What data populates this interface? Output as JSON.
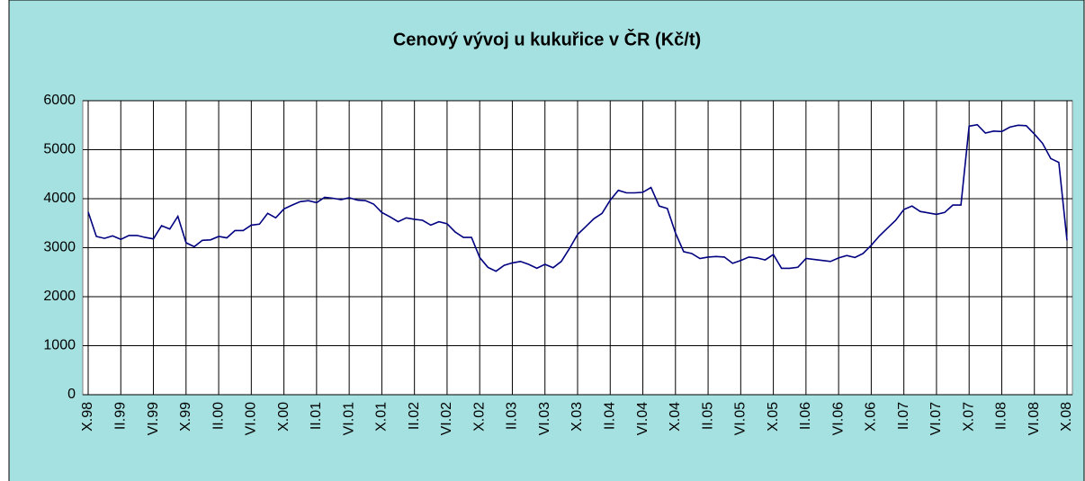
{
  "chart_data": {
    "type": "line",
    "title": "Cenový vývoj u kukuřice v ČR (Kč/t)",
    "categories": [
      "X.98",
      null,
      null,
      null,
      "II.99",
      null,
      null,
      null,
      "VI.99",
      null,
      null,
      null,
      "X.99",
      null,
      null,
      null,
      "II.00",
      null,
      null,
      null,
      "VI.00",
      null,
      null,
      null,
      "X.00",
      null,
      null,
      null,
      "II.01",
      null,
      null,
      null,
      "VI.01",
      null,
      null,
      null,
      "X.01",
      null,
      null,
      null,
      "II.02",
      null,
      null,
      null,
      "VI.02",
      null,
      null,
      null,
      "X.02",
      null,
      null,
      null,
      "II.03",
      null,
      null,
      null,
      "VI.03",
      null,
      null,
      null,
      "X.03",
      null,
      null,
      null,
      "II.04",
      null,
      null,
      null,
      "VI.04",
      null,
      null,
      null,
      "X.04",
      null,
      null,
      null,
      "II.05",
      null,
      null,
      null,
      "VI.05",
      null,
      null,
      null,
      "X.05",
      null,
      null,
      null,
      "II.06",
      null,
      null,
      null,
      "VI.06",
      null,
      null,
      null,
      "X.06",
      null,
      null,
      null,
      "II.07",
      null,
      null,
      null,
      "VI.07",
      null,
      null,
      null,
      "X.07",
      null,
      null,
      null,
      "II.08",
      null,
      null,
      null,
      "VI.08",
      null,
      null,
      null,
      "X.08"
    ],
    "values": [
      3730,
      3230,
      3190,
      3240,
      3170,
      3250,
      3250,
      3210,
      3180,
      3450,
      3380,
      3640,
      3100,
      3020,
      3150,
      3160,
      3230,
      3200,
      3350,
      3350,
      3460,
      3480,
      3700,
      3610,
      3790,
      3870,
      3940,
      3960,
      3920,
      4030,
      4010,
      3980,
      4020,
      3970,
      3960,
      3890,
      3720,
      3630,
      3530,
      3610,
      3580,
      3560,
      3460,
      3530,
      3490,
      3320,
      3210,
      3210,
      2800,
      2600,
      2520,
      2640,
      2690,
      2720,
      2660,
      2580,
      2660,
      2590,
      2720,
      2980,
      3270,
      3430,
      3590,
      3700,
      3970,
      4170,
      4120,
      4120,
      4130,
      4230,
      3850,
      3800,
      3300,
      2920,
      2880,
      2780,
      2810,
      2820,
      2810,
      2680,
      2740,
      2810,
      2790,
      2750,
      2860,
      2580,
      2580,
      2600,
      2780,
      2760,
      2740,
      2720,
      2790,
      2840,
      2800,
      2880,
      3050,
      3240,
      3400,
      3560,
      3780,
      3850,
      3740,
      3710,
      3680,
      3720,
      3870,
      3870,
      5480,
      5510,
      5340,
      5380,
      5370,
      5460,
      5500,
      5490,
      5320,
      5130,
      4820,
      4740,
      3150
    ],
    "color": "#000080",
    "ylim": [
      0,
      6000
    ],
    "yticks": [
      0,
      1000,
      2000,
      3000,
      4000,
      5000,
      6000
    ],
    "grid": true
  }
}
